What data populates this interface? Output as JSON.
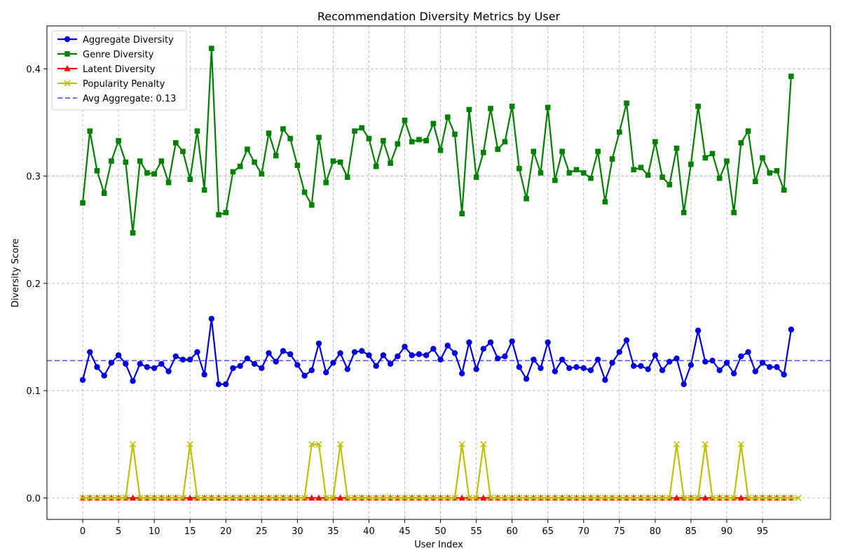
{
  "chart_data": {
    "type": "line",
    "title": "Recommendation Diversity Metrics by User",
    "xlabel": "User Index",
    "ylabel": "Diversity Score",
    "xlim": [
      -5,
      104.5
    ],
    "ylim": [
      -0.02,
      0.44
    ],
    "xticks": [
      0,
      5,
      10,
      15,
      20,
      25,
      30,
      35,
      40,
      45,
      50,
      55,
      60,
      65,
      70,
      75,
      80,
      85,
      90,
      95
    ],
    "yticks": [
      0.0,
      0.1,
      0.2,
      0.3,
      0.4
    ],
    "ytick_labels": [
      "0.0",
      "0.1",
      "0.2",
      "0.3",
      "0.4"
    ],
    "grid": true,
    "legend_position": "upper-left",
    "series": [
      {
        "name": "Aggregate Diversity",
        "color": "#0000dd",
        "marker": "circle",
        "values": [
          0.11,
          0.136,
          0.122,
          0.114,
          0.126,
          0.133,
          0.125,
          0.109,
          0.125,
          0.122,
          0.121,
          0.125,
          0.118,
          0.132,
          0.129,
          0.129,
          0.136,
          0.115,
          0.167,
          0.106,
          0.106,
          0.121,
          0.123,
          0.13,
          0.125,
          0.121,
          0.135,
          0.127,
          0.137,
          0.134,
          0.124,
          0.114,
          0.119,
          0.144,
          0.117,
          0.126,
          0.135,
          0.12,
          0.136,
          0.137,
          0.133,
          0.123,
          0.133,
          0.125,
          0.132,
          0.141,
          0.133,
          0.134,
          0.133,
          0.139,
          0.129,
          0.142,
          0.135,
          0.116,
          0.145,
          0.12,
          0.139,
          0.145,
          0.13,
          0.132,
          0.146,
          0.122,
          0.111,
          0.129,
          0.121,
          0.145,
          0.118,
          0.129,
          0.121,
          0.122,
          0.121,
          0.119,
          0.129,
          0.11,
          0.126,
          0.136,
          0.147,
          0.123,
          0.123,
          0.12,
          0.133,
          0.119,
          0.127,
          0.13,
          0.106,
          0.124,
          0.156,
          0.127,
          0.128,
          0.119,
          0.126,
          0.116,
          0.132,
          0.136,
          0.118,
          0.126,
          0.122,
          0.122,
          0.115,
          0.157
        ]
      },
      {
        "name": "Genre Diversity",
        "color": "#007f00",
        "marker": "square",
        "values": [
          0.275,
          0.342,
          0.305,
          0.284,
          0.314,
          0.333,
          0.313,
          0.247,
          0.314,
          0.303,
          0.302,
          0.314,
          0.294,
          0.331,
          0.323,
          0.297,
          0.342,
          0.287,
          0.419,
          0.264,
          0.266,
          0.304,
          0.309,
          0.325,
          0.313,
          0.302,
          0.34,
          0.319,
          0.344,
          0.335,
          0.31,
          0.285,
          0.273,
          0.336,
          0.294,
          0.314,
          0.313,
          0.299,
          0.342,
          0.345,
          0.335,
          0.309,
          0.333,
          0.312,
          0.33,
          0.352,
          0.332,
          0.334,
          0.333,
          0.349,
          0.324,
          0.355,
          0.339,
          0.265,
          0.362,
          0.299,
          0.322,
          0.363,
          0.325,
          0.332,
          0.365,
          0.307,
          0.279,
          0.323,
          0.303,
          0.364,
          0.296,
          0.323,
          0.303,
          0.306,
          0.303,
          0.298,
          0.323,
          0.276,
          0.316,
          0.341,
          0.368,
          0.306,
          0.308,
          0.301,
          0.332,
          0.299,
          0.292,
          0.326,
          0.266,
          0.311,
          0.365,
          0.317,
          0.321,
          0.298,
          0.314,
          0.266,
          0.331,
          0.342,
          0.295,
          0.317,
          0.303,
          0.305,
          0.287,
          0.393
        ]
      },
      {
        "name": "Latent Diversity",
        "color": "#ff0000",
        "marker": "triangle",
        "values": [
          0,
          0,
          0,
          0,
          0,
          0,
          0,
          0,
          0,
          0,
          0,
          0,
          0,
          0,
          0,
          0,
          0,
          0,
          0,
          0,
          0,
          0,
          0,
          0,
          0,
          0,
          0,
          0,
          0,
          0,
          0,
          0,
          0,
          0,
          0,
          0,
          0,
          0,
          0,
          0,
          0,
          0,
          0,
          0,
          0,
          0,
          0,
          0,
          0,
          0,
          0,
          0,
          0,
          0,
          0,
          0,
          0,
          0,
          0,
          0,
          0,
          0,
          0,
          0,
          0,
          0,
          0,
          0,
          0,
          0,
          0,
          0,
          0,
          0,
          0,
          0,
          0,
          0,
          0,
          0,
          0,
          0,
          0,
          0,
          0,
          0,
          0,
          0,
          0,
          0,
          0,
          0,
          0,
          0,
          0,
          0,
          0,
          0,
          0,
          0
        ]
      },
      {
        "name": "Popularity Penalty",
        "color": "#bfbf00",
        "marker": "x",
        "values": [
          0,
          0,
          0,
          0,
          0,
          0,
          0,
          0.05,
          0,
          0,
          0,
          0,
          0,
          0,
          0,
          0.05,
          0,
          0,
          0,
          0,
          0,
          0,
          0,
          0,
          0,
          0,
          0,
          0,
          0,
          0,
          0,
          0,
          0.05,
          0.05,
          0,
          0,
          0.05,
          0,
          0,
          0,
          0,
          0,
          0,
          0,
          0,
          0,
          0,
          0,
          0,
          0,
          0,
          0,
          0,
          0.05,
          0,
          0,
          0.05,
          0,
          0,
          0,
          0,
          0,
          0,
          0,
          0,
          0,
          0,
          0,
          0,
          0,
          0,
          0,
          0,
          0,
          0,
          0,
          0,
          0,
          0,
          0,
          0,
          0,
          0,
          0.05,
          0,
          0,
          0,
          0.05,
          0,
          0,
          0,
          0,
          0.05,
          0,
          0,
          0,
          0,
          0,
          0,
          0,
          0
        ]
      }
    ],
    "reference_line": {
      "label": "Avg Aggregate: 0.13",
      "value": 0.128,
      "color": "#4444dd",
      "style": "dashed"
    }
  }
}
